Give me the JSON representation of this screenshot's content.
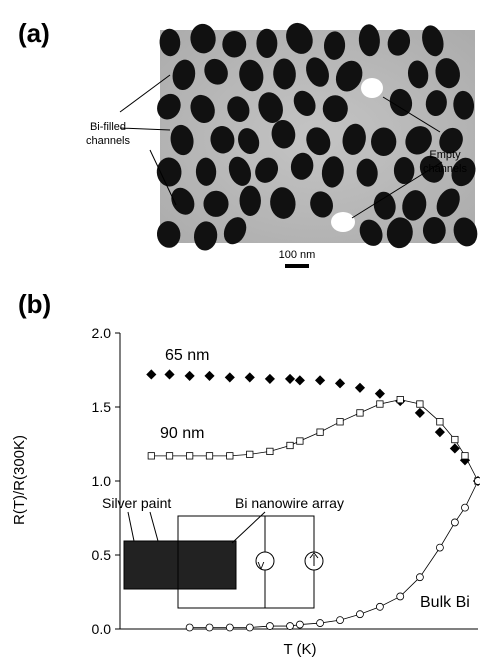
{
  "panel_a": {
    "label": "(a)",
    "filled_label": [
      "Bi-filled",
      "channels"
    ],
    "empty_label": [
      "Empty",
      "channels"
    ],
    "scale_bar": "100 nm"
  },
  "chart_data": {
    "type": "line",
    "label": "(b)",
    "xlabel": "T (K)",
    "ylabel": "R(T)/R(300K)",
    "xscale": "log",
    "xlim": [
      2,
      300
    ],
    "ylim": [
      0,
      2
    ],
    "yticks": [
      {
        "value": 0,
        "label": "0.0"
      },
      {
        "value": 0.5,
        "label": "0.5"
      },
      {
        "value": 1,
        "label": "1.0"
      },
      {
        "value": 1.5,
        "label": "1.5"
      },
      {
        "value": 2,
        "label": "2.0"
      }
    ],
    "series": [
      {
        "name": "65 nm",
        "color": "#000000",
        "marker": "diamond",
        "filled": true,
        "x": [
          3.1,
          4,
          5.3,
          7,
          9.3,
          12.3,
          16.3,
          21.6,
          24.8,
          32.9,
          43.5,
          57.5,
          76,
          101,
          133,
          176,
          217,
          250,
          300
        ],
        "values": [
          1.72,
          1.72,
          1.71,
          1.71,
          1.7,
          1.7,
          1.69,
          1.69,
          1.68,
          1.68,
          1.66,
          1.63,
          1.59,
          1.54,
          1.46,
          1.33,
          1.22,
          1.14,
          1.0
        ]
      },
      {
        "name": "90 nm",
        "color": "#000000",
        "marker": "square",
        "filled": false,
        "x": [
          3.1,
          4,
          5.3,
          7,
          9.3,
          12.3,
          16.3,
          21.6,
          24.8,
          32.9,
          43.5,
          57.5,
          76,
          101,
          133,
          176,
          217,
          250,
          300
        ],
        "values": [
          1.17,
          1.17,
          1.17,
          1.17,
          1.17,
          1.18,
          1.2,
          1.24,
          1.27,
          1.33,
          1.4,
          1.46,
          1.52,
          1.55,
          1.52,
          1.4,
          1.28,
          1.17,
          1.0
        ]
      },
      {
        "name": "Bulk Bi",
        "color": "#000000",
        "marker": "circle",
        "filled": false,
        "x": [
          5.3,
          7,
          9.3,
          12.3,
          16.3,
          21.6,
          24.8,
          32.9,
          43.5,
          57.5,
          76,
          101,
          133,
          176,
          217,
          250,
          300
        ],
        "values": [
          0.01,
          0.01,
          0.01,
          0.01,
          0.02,
          0.02,
          0.03,
          0.04,
          0.06,
          0.1,
          0.15,
          0.22,
          0.35,
          0.55,
          0.72,
          0.82,
          1.0
        ]
      }
    ],
    "inset_labels": [
      "Silver paint",
      "Bi nanowire array"
    ]
  }
}
